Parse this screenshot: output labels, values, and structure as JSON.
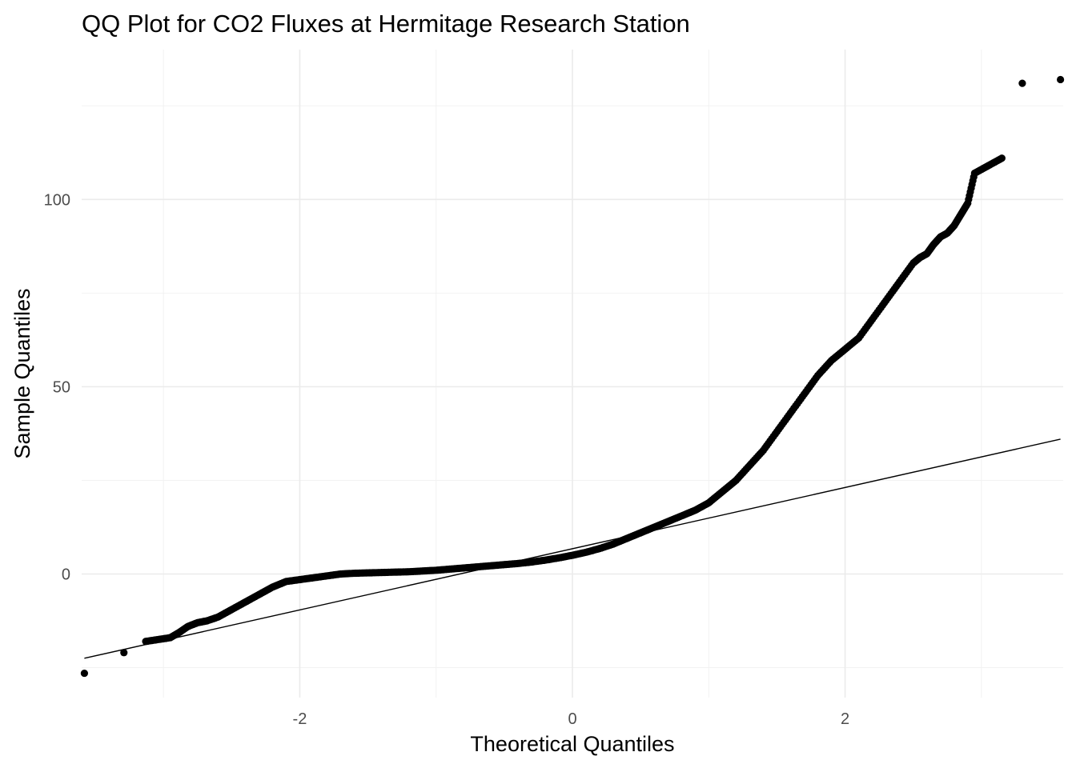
{
  "chart_data": {
    "type": "scatter",
    "title": "QQ Plot for CO2 Fluxes at Hermitage Research Station",
    "xlabel": "Theoretical Quantiles",
    "ylabel": "Sample Quantiles",
    "xlim": [
      -3.6,
      3.6
    ],
    "ylim": [
      -33,
      140
    ],
    "x_ticks": [
      -2,
      0,
      2
    ],
    "x_tick_labels": [
      "-2",
      "0",
      "2"
    ],
    "x_minor": [
      -3,
      -1,
      1,
      3
    ],
    "y_ticks": [
      0,
      50,
      100
    ],
    "y_tick_labels": [
      "0",
      "50",
      "100"
    ],
    "y_minor": [
      -25,
      25,
      75,
      125
    ],
    "grid": true,
    "point_color": "#000000",
    "line_color": "#000000",
    "reference_line": {
      "x": [
        -3.58,
        3.58
      ],
      "y": [
        -22.5,
        36
      ]
    },
    "series": [
      {
        "x": [
          -3.58,
          -3.29,
          -3.13,
          -3.04,
          -2.95,
          -2.88,
          -2.82,
          -2.75,
          -2.68,
          -2.6,
          -2.5,
          -2.4,
          -2.3,
          -2.2,
          -2.1,
          -2.0,
          -1.9,
          -1.8,
          -1.7,
          -1.6,
          -1.5,
          -1.4,
          -1.3,
          -1.2,
          -1.1,
          -1.0,
          -0.9,
          -0.8,
          -0.7,
          -0.6,
          -0.5,
          -0.4,
          -0.3,
          -0.2,
          -0.1,
          0.0,
          0.1,
          0.2,
          0.3,
          0.4,
          0.5,
          0.6,
          0.7,
          0.8,
          0.9,
          1.0,
          1.1,
          1.2,
          1.3,
          1.4,
          1.5,
          1.6,
          1.7,
          1.8,
          1.9,
          2.0,
          2.1,
          2.2,
          2.3,
          2.4,
          2.5,
          2.55,
          2.6,
          2.65,
          2.7,
          2.75,
          2.8,
          2.85,
          2.9,
          2.95,
          3.05,
          3.15,
          3.3,
          3.58
        ],
        "y": [
          -26.5,
          -21,
          -18,
          -17.5,
          -17,
          -15.5,
          -14,
          -13,
          -12.5,
          -11.5,
          -9.5,
          -7.5,
          -5.5,
          -3.5,
          -2,
          -1.5,
          -1,
          -0.5,
          0,
          0.2,
          0.3,
          0.4,
          0.5,
          0.6,
          0.8,
          1,
          1.3,
          1.6,
          1.9,
          2.2,
          2.5,
          2.8,
          3.2,
          3.7,
          4.3,
          5,
          5.8,
          6.8,
          8,
          9.5,
          11,
          12.5,
          14,
          15.5,
          17,
          19,
          22,
          25,
          29,
          33,
          38,
          43,
          48,
          53,
          57,
          60,
          63,
          68,
          73,
          78,
          83,
          84.5,
          85.5,
          88,
          90,
          91,
          93,
          96,
          99,
          107,
          109,
          111,
          131,
          132
        ]
      }
    ]
  }
}
